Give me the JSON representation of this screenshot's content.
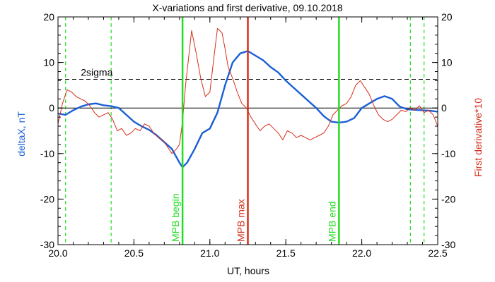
{
  "chart_data": {
    "type": "line",
    "title": "X-variations and first derivative, 09.10.2018",
    "xlabel": "UT, hours",
    "ylabel_left": "deltaX, nT",
    "ylabel_right": "First derivative*10",
    "xlim": [
      20.0,
      22.5
    ],
    "ylim": [
      -30,
      20
    ],
    "x_ticks": [
      20.0,
      20.5,
      21.0,
      21.5,
      22.0,
      22.5
    ],
    "x_tick_labels": [
      "20.0",
      "20.5",
      "21.0",
      "21.5",
      "22.0",
      "22.5"
    ],
    "y_ticks": [
      20,
      10,
      0,
      -10,
      -20,
      -30
    ],
    "y_tick_labels": [
      "20",
      "10",
      "0",
      "-10",
      "-20",
      "-30"
    ],
    "colors": {
      "deltaX": "#1a5fd6",
      "derivative": "#d62e1a",
      "mpb": "#22dd22",
      "mpb_max": "#d62e1a",
      "dashed": "#000000"
    },
    "zero_line": 0,
    "sigma_line": {
      "value": 6.3,
      "label": "2sigma"
    },
    "vlines_dashed_green": [
      20.05,
      20.35,
      22.32,
      22.41
    ],
    "vlines_solid": [
      {
        "x": 20.82,
        "label": "MPB begin",
        "color": "#22dd22"
      },
      {
        "x": 21.25,
        "label": "MPB max",
        "color": "#d62e1a"
      },
      {
        "x": 21.85,
        "label": "MPB end",
        "color": "#22dd22"
      }
    ],
    "series": [
      {
        "key": "deltaX",
        "color": "#1a5fd6",
        "x": [
          20.0,
          20.05,
          20.1,
          20.15,
          20.2,
          20.25,
          20.3,
          20.35,
          20.4,
          20.45,
          20.5,
          20.55,
          20.6,
          20.65,
          20.7,
          20.75,
          20.8,
          20.82,
          20.85,
          20.9,
          20.95,
          21.0,
          21.05,
          21.1,
          21.15,
          21.2,
          21.25,
          21.3,
          21.35,
          21.4,
          21.45,
          21.5,
          21.55,
          21.6,
          21.65,
          21.7,
          21.75,
          21.8,
          21.85,
          21.9,
          21.95,
          22.0,
          22.05,
          22.1,
          22.15,
          22.2,
          22.25,
          22.3,
          22.35,
          22.4,
          22.45,
          22.5
        ],
        "y": [
          -1.2,
          -1.5,
          -0.5,
          0.3,
          0.8,
          1.0,
          0.6,
          0.4,
          0.0,
          -1.5,
          -3.0,
          -4.0,
          -4.8,
          -6.0,
          -7.5,
          -9.0,
          -12.0,
          -13.0,
          -12.0,
          -9.0,
          -5.5,
          -4.5,
          -1.0,
          5.0,
          10.0,
          12.0,
          12.5,
          11.5,
          10.5,
          9.0,
          7.8,
          6.0,
          4.5,
          3.0,
          1.5,
          0.0,
          -1.8,
          -3.0,
          -3.2,
          -3.0,
          -2.2,
          0.0,
          1.0,
          2.0,
          2.6,
          2.0,
          0.3,
          -0.3,
          -0.4,
          -0.5,
          -0.6,
          -0.8
        ]
      },
      {
        "key": "derivative",
        "color": "#d62e1a",
        "x": [
          20.0,
          20.03,
          20.06,
          20.09,
          20.12,
          20.15,
          20.18,
          20.21,
          20.24,
          20.27,
          20.3,
          20.33,
          20.36,
          20.39,
          20.42,
          20.45,
          20.48,
          20.51,
          20.54,
          20.57,
          20.6,
          20.63,
          20.66,
          20.69,
          20.72,
          20.75,
          20.78,
          20.8,
          20.82,
          20.84,
          20.86,
          20.88,
          20.91,
          20.94,
          20.97,
          21.0,
          21.03,
          21.05,
          21.08,
          21.1,
          21.12,
          21.15,
          21.18,
          21.21,
          21.24,
          21.27,
          21.3,
          21.33,
          21.36,
          21.39,
          21.42,
          21.45,
          21.48,
          21.51,
          21.54,
          21.57,
          21.6,
          21.63,
          21.66,
          21.69,
          21.72,
          21.75,
          21.78,
          21.81,
          21.84,
          21.87,
          21.9,
          21.93,
          21.96,
          21.99,
          22.02,
          22.05,
          22.08,
          22.11,
          22.14,
          22.17,
          22.2,
          22.23,
          22.26,
          22.29,
          22.32,
          22.35,
          22.38,
          22.41,
          22.44,
          22.47,
          22.5
        ],
        "y": [
          -3.5,
          1.0,
          4.0,
          3.5,
          2.5,
          2.0,
          1.5,
          0.5,
          -1.0,
          -2.0,
          -1.5,
          -1.0,
          -2.5,
          -5.0,
          -4.5,
          -6.0,
          -5.5,
          -4.5,
          -5.0,
          -3.5,
          -4.0,
          -5.5,
          -6.5,
          -7.0,
          -8.5,
          -10.0,
          -9.0,
          -8.0,
          -3.0,
          5.0,
          11.0,
          17.0,
          12.0,
          6.5,
          2.5,
          3.5,
          12.0,
          17.5,
          16.5,
          13.0,
          9.0,
          6.5,
          3.5,
          1.0,
          0.0,
          -2.0,
          -3.5,
          -5.0,
          -4.0,
          -3.5,
          -4.5,
          -5.5,
          -7.0,
          -5.0,
          -5.5,
          -6.5,
          -6.0,
          -6.5,
          -7.0,
          -6.5,
          -6.0,
          -5.5,
          -4.0,
          -1.5,
          -0.5,
          0.5,
          1.0,
          2.5,
          5.0,
          6.0,
          4.5,
          3.0,
          0.5,
          -1.5,
          -2.5,
          -3.0,
          -2.5,
          -1.5,
          -0.5,
          -0.8,
          0.0,
          -0.5,
          0.5,
          -1.0,
          -0.5,
          -1.5,
          -4.0
        ]
      }
    ]
  }
}
